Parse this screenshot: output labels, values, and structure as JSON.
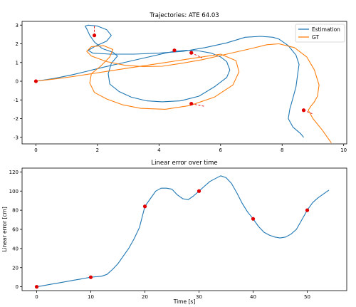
{
  "chart_data": [
    {
      "type": "line",
      "title": "Trajectories: ATE 64.03",
      "xlabel": "",
      "ylabel": "",
      "xlim": [
        -0.45,
        10.1
      ],
      "ylim": [
        -3.35,
        3.2
      ],
      "xticks": [
        "0",
        "2",
        "4",
        "6",
        "8",
        "10"
      ],
      "xtick_values": [
        0,
        2,
        4,
        6,
        8,
        10
      ],
      "yticks": [
        "-3",
        "-2",
        "-1",
        "0",
        "1",
        "2",
        "3"
      ],
      "ytick_values": [
        -3,
        -2,
        -1,
        0,
        1,
        2,
        3
      ],
      "grid": false,
      "legend_position": "top-right",
      "series": [
        {
          "name": "Estimation",
          "color": "#1f77b4",
          "x": [
            0.0,
            0.6,
            1.2,
            1.7,
            2.2,
            2.6,
            3.0,
            3.4,
            3.8,
            4.2,
            4.5,
            4.9,
            5.3,
            5.7,
            6.0,
            6.2,
            6.3,
            6.2,
            5.8,
            5.3,
            4.7,
            4.1,
            3.6,
            3.1,
            2.7,
            2.4,
            2.35,
            2.45,
            2.65,
            2.5,
            2.15,
            1.9,
            1.75,
            1.65,
            1.6,
            1.7,
            2.0,
            2.3,
            2.45,
            2.3,
            1.9,
            1.7,
            1.85,
            2.4,
            3.2,
            4.0,
            4.8,
            5.5,
            6.2,
            6.8,
            7.3,
            7.7,
            7.9,
            8.2,
            8.45,
            8.55,
            8.5,
            8.45,
            8.35,
            8.25,
            8.2,
            8.35,
            8.6,
            8.7
          ],
          "y": [
            0.0,
            0.15,
            0.35,
            0.55,
            0.75,
            0.9,
            1.05,
            1.2,
            1.35,
            1.5,
            1.6,
            1.65,
            1.62,
            1.5,
            1.3,
            1.05,
            0.6,
            0.2,
            -0.3,
            -0.8,
            -1.05,
            -1.1,
            -1.05,
            -0.85,
            -0.55,
            -0.15,
            0.4,
            0.95,
            1.35,
            1.55,
            1.75,
            2.1,
            2.45,
            2.8,
            2.95,
            3.0,
            2.95,
            2.75,
            2.45,
            2.15,
            1.85,
            1.65,
            1.5,
            1.45,
            1.45,
            1.5,
            1.6,
            1.8,
            2.05,
            2.35,
            2.4,
            2.35,
            2.25,
            1.9,
            1.4,
            0.9,
            0.3,
            -0.3,
            -0.9,
            -1.5,
            -2.0,
            -2.45,
            -2.8,
            -3.0
          ]
        },
        {
          "name": "GT",
          "color": "#ff7f0e",
          "x": [
            0.0,
            0.6,
            1.2,
            1.8,
            2.4,
            3.0,
            3.6,
            4.2,
            4.8,
            5.4,
            6.0,
            6.5,
            6.6,
            6.4,
            5.8,
            5.0,
            4.2,
            3.4,
            2.8,
            2.3,
            1.9,
            1.75,
            1.8,
            2.1,
            2.4,
            2.5,
            2.2,
            1.8,
            1.65,
            1.8,
            2.3,
            2.9,
            3.5,
            4.1,
            4.7,
            5.4,
            6.2,
            7.0,
            7.5,
            7.9,
            8.4,
            8.8,
            9.05,
            9.2,
            9.15,
            9.05,
            8.95,
            8.85,
            9.0,
            9.3,
            9.6
          ],
          "y": [
            0.0,
            0.12,
            0.25,
            0.4,
            0.55,
            0.7,
            0.85,
            1.0,
            1.15,
            1.3,
            1.45,
            1.1,
            0.5,
            -0.2,
            -0.85,
            -1.3,
            -1.5,
            -1.45,
            -1.25,
            -0.95,
            -0.6,
            -0.1,
            0.4,
            0.8,
            1.3,
            1.7,
            1.9,
            1.85,
            1.6,
            1.35,
            1.05,
            0.85,
            0.78,
            0.8,
            0.95,
            1.15,
            1.45,
            1.75,
            1.95,
            2.0,
            1.8,
            1.3,
            0.6,
            -0.2,
            -0.8,
            -1.1,
            -1.3,
            -1.55,
            -2.0,
            -2.6,
            -3.3
          ]
        }
      ],
      "highlight_points": {
        "color": "#e00000",
        "x": [
          0.0,
          1.9,
          4.5,
          5.05,
          5.05,
          8.7
        ],
        "y": [
          0.0,
          2.45,
          1.65,
          1.52,
          -1.2,
          -1.55
        ],
        "gt_x": [
          0.0,
          1.9,
          4.55,
          5.4,
          5.5,
          9.0
        ],
        "gt_y": [
          0.0,
          3.0,
          1.7,
          1.25,
          -1.35,
          -1.75
        ]
      }
    },
    {
      "type": "line",
      "title": "Linear error over time",
      "xlabel": "Time [s]",
      "ylabel": "Linear error [cm]",
      "xlim": [
        -2.7,
        57.3
      ],
      "ylim": [
        -4,
        124
      ],
      "xticks": [
        "0",
        "10",
        "20",
        "30",
        "40",
        "50"
      ],
      "xtick_values": [
        0,
        10,
        20,
        30,
        40,
        50
      ],
      "yticks": [
        "0",
        "20",
        "40",
        "60",
        "80",
        "100",
        "120"
      ],
      "ytick_values": [
        0,
        20,
        40,
        60,
        80,
        100,
        120
      ],
      "grid": false,
      "series": [
        {
          "name": "",
          "color": "#1f77b4",
          "x": [
            0,
            1,
            2,
            3,
            4,
            5,
            6,
            7,
            8,
            9,
            10,
            11,
            12,
            13,
            14,
            15,
            16,
            17,
            18,
            19,
            20,
            21,
            22,
            23,
            24,
            25,
            26,
            27,
            28,
            29,
            30,
            31,
            32,
            33,
            34,
            35,
            36,
            37,
            38,
            39,
            40,
            41,
            42,
            43,
            44,
            45,
            46,
            47,
            48,
            49,
            50,
            51,
            52,
            53,
            54
          ],
          "y": [
            0,
            1,
            2,
            3,
            4,
            5,
            6,
            7,
            8,
            9,
            10,
            10.5,
            11,
            13,
            18,
            24,
            32,
            40,
            50,
            62,
            84,
            92,
            100,
            103,
            103,
            102,
            96,
            92,
            91,
            95,
            100,
            105,
            110,
            113,
            116,
            114,
            108,
            98,
            87,
            78,
            71,
            63,
            57,
            54,
            52,
            51,
            52,
            55,
            60,
            70,
            80,
            88,
            93,
            97,
            101
          ]
        }
      ],
      "highlight_points": {
        "color": "#e00000",
        "x": [
          0,
          10,
          20,
          30,
          40,
          50
        ],
        "y": [
          0,
          10,
          84,
          100,
          71,
          80
        ]
      }
    }
  ]
}
